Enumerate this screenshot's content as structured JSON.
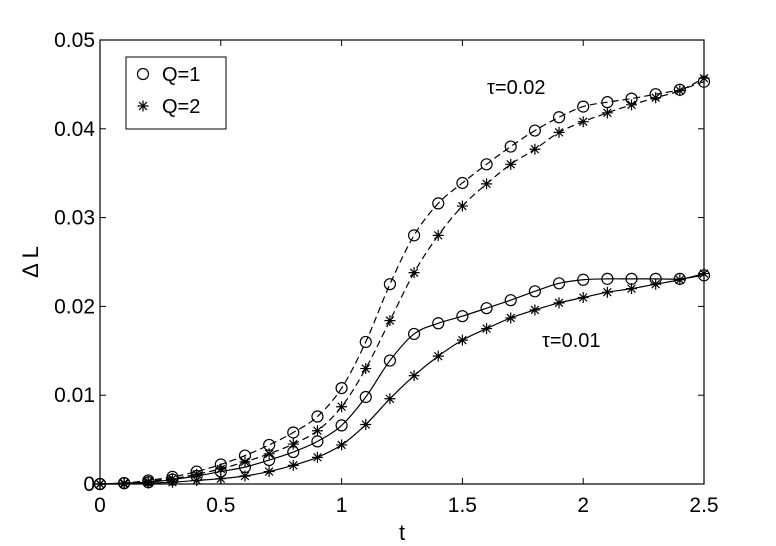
{
  "chart_data": {
    "type": "line",
    "title": "",
    "xlabel": "t",
    "ylabel": "Δ L",
    "xlim": [
      0,
      2.5
    ],
    "ylim": [
      0,
      0.05
    ],
    "xticks": [
      0,
      0.5,
      1,
      1.5,
      2,
      2.5
    ],
    "xtick_labels": [
      "0",
      "0.5",
      "1",
      "1.5",
      "2",
      "2.5"
    ],
    "yticks": [
      0,
      0.01,
      0.02,
      0.03,
      0.04,
      0.05
    ],
    "ytick_labels": [
      "0",
      "0.01",
      "0.02",
      "0.03",
      "0.04",
      "0.05"
    ],
    "grid": false,
    "legend": {
      "placement": "top-left",
      "entries": [
        {
          "marker": "circle",
          "label": "Q=1"
        },
        {
          "marker": "asterisk",
          "label": "Q=2"
        }
      ]
    },
    "annotations": [
      {
        "text": "τ=0.02",
        "near": "upper curves"
      },
      {
        "text": "τ=0.01",
        "near": "lower curves"
      }
    ],
    "x": [
      0,
      0.1,
      0.2,
      0.3,
      0.4,
      0.5,
      0.6,
      0.7,
      0.8,
      0.9,
      1.0,
      1.1,
      1.2,
      1.3,
      1.4,
      1.5,
      1.6,
      1.7,
      1.8,
      1.9,
      2.0,
      2.1,
      2.2,
      2.3,
      2.4,
      2.5
    ],
    "series": [
      {
        "group": "τ=0.02",
        "Q": 1,
        "marker": "circle",
        "linestyle": "dashed",
        "values": [
          0,
          0.0001,
          0.0004,
          0.0008,
          0.0014,
          0.0022,
          0.0032,
          0.0044,
          0.0058,
          0.0076,
          0.0108,
          0.016,
          0.0225,
          0.028,
          0.0316,
          0.0339,
          0.036,
          0.038,
          0.0398,
          0.0413,
          0.0425,
          0.043,
          0.0434,
          0.0439,
          0.0444,
          0.0453
        ]
      },
      {
        "group": "τ=0.02",
        "Q": 2,
        "marker": "asterisk",
        "linestyle": "dashed",
        "values": [
          0,
          0.0001,
          0.0003,
          0.0006,
          0.0011,
          0.0017,
          0.0025,
          0.0034,
          0.0045,
          0.006,
          0.0087,
          0.013,
          0.0184,
          0.0238,
          0.028,
          0.0313,
          0.0338,
          0.036,
          0.0377,
          0.0396,
          0.0408,
          0.0418,
          0.0427,
          0.0435,
          0.0443,
          0.0457
        ]
      },
      {
        "group": "τ=0.01",
        "Q": 1,
        "marker": "circle",
        "linestyle": "solid",
        "values": [
          0,
          0.0001,
          0.0002,
          0.0005,
          0.0009,
          0.0014,
          0.0019,
          0.0027,
          0.0036,
          0.0048,
          0.0066,
          0.0098,
          0.0139,
          0.0169,
          0.0181,
          0.0189,
          0.0198,
          0.0207,
          0.0217,
          0.0226,
          0.023,
          0.0231,
          0.0231,
          0.0231,
          0.0231,
          0.0235
        ]
      },
      {
        "group": "τ=0.01",
        "Q": 2,
        "marker": "asterisk",
        "linestyle": "solid",
        "values": [
          0,
          0,
          0.0001,
          0.0002,
          0.0004,
          0.0006,
          0.0009,
          0.0014,
          0.0021,
          0.003,
          0.0044,
          0.0067,
          0.0096,
          0.0122,
          0.0144,
          0.0162,
          0.0175,
          0.0187,
          0.0196,
          0.0204,
          0.021,
          0.0216,
          0.022,
          0.0225,
          0.023,
          0.0237
        ]
      }
    ]
  }
}
